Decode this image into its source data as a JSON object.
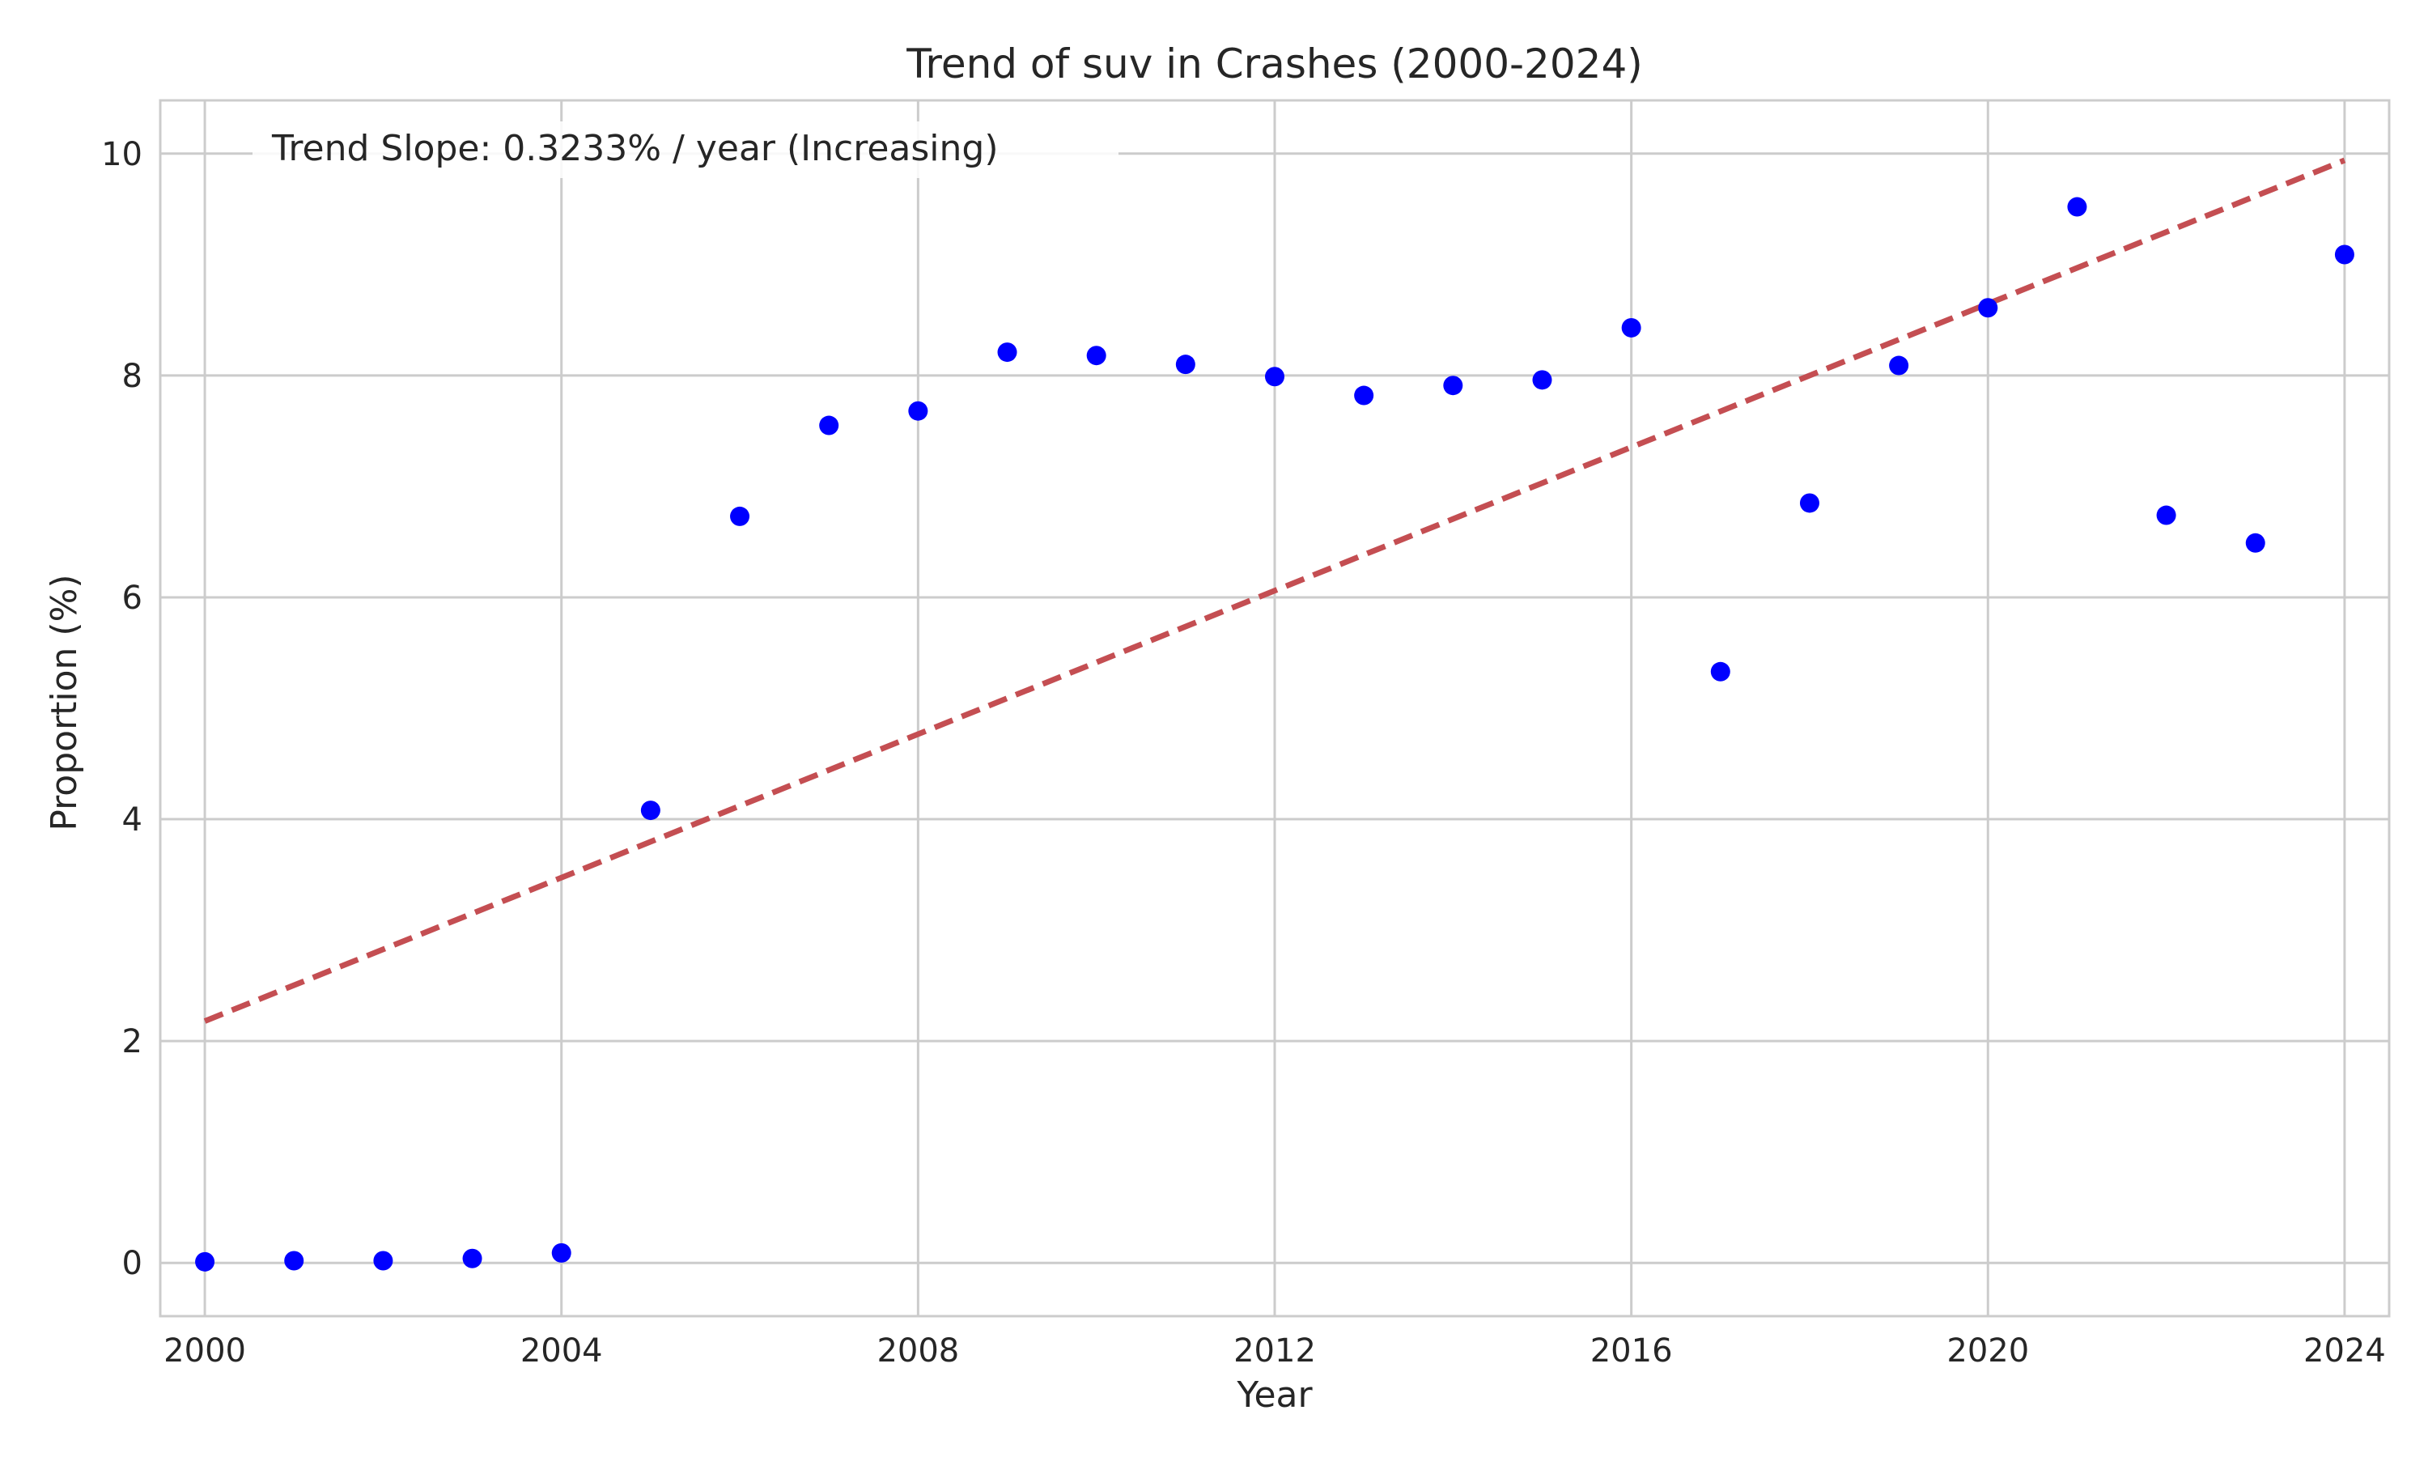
{
  "chart_data": {
    "type": "scatter",
    "title": "Trend of suv in Crashes (2000-2024)",
    "xlabel": "Year",
    "ylabel": "Proportion (%)",
    "xlim": [
      1999.5,
      2024.5
    ],
    "ylim": [
      -0.48,
      10.48
    ],
    "x_ticks": [
      2000,
      2004,
      2008,
      2012,
      2016,
      2020,
      2024
    ],
    "y_ticks": [
      0,
      2,
      4,
      6,
      8,
      10
    ],
    "grid": true,
    "legend_position": "top-left",
    "series": [
      {
        "kind": "points",
        "color": "#0000ff",
        "x": [
          2000,
          2001,
          2002,
          2003,
          2004,
          2005,
          2006,
          2007,
          2008,
          2009,
          2010,
          2011,
          2012,
          2013,
          2014,
          2015,
          2016,
          2017,
          2018,
          2019,
          2020,
          2021,
          2022,
          2023,
          2024
        ],
        "y": [
          0.01,
          0.02,
          0.02,
          0.04,
          0.09,
          4.08,
          6.73,
          7.55,
          7.68,
          8.21,
          8.18,
          8.1,
          7.99,
          7.82,
          7.91,
          7.96,
          8.43,
          5.33,
          6.85,
          8.09,
          8.61,
          9.52,
          6.74,
          6.49,
          9.09
        ]
      },
      {
        "kind": "trend",
        "name": "Trend Slope: 0.3233% / year (Increasing)",
        "color": "#c44e52",
        "x": [
          2000,
          2024
        ],
        "y": [
          2.18,
          9.94
        ]
      }
    ]
  }
}
